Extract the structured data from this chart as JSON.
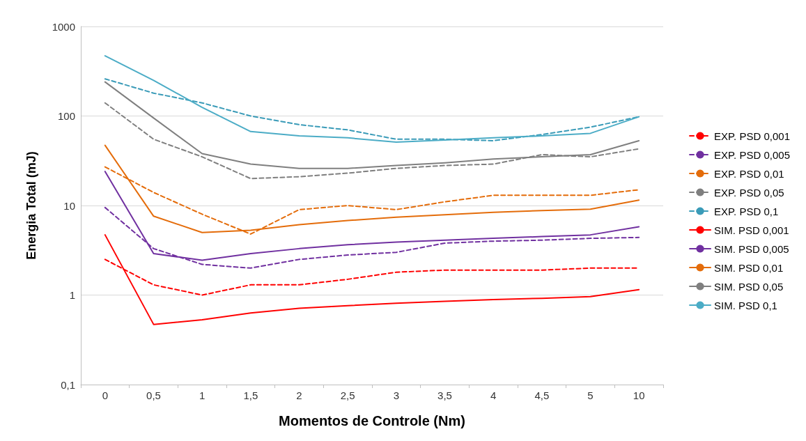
{
  "chart_data": {
    "type": "line",
    "xlabel": "Momentos de Controle (Nm)",
    "ylabel": "Energia Total (mJ)",
    "categories": [
      "0",
      "0,5",
      "1",
      "1,5",
      "2",
      "2,5",
      "3",
      "3,5",
      "4",
      "4,5",
      "5",
      "10"
    ],
    "log": "y",
    "ylim": [
      0.1,
      1000
    ],
    "yticks": [
      {
        "value": 0.1,
        "label": "0,1"
      },
      1,
      10,
      100,
      1000
    ],
    "grid": "y",
    "legend": "right",
    "marker": "none",
    "series": [
      {
        "name": "EXP. PSD 0,001",
        "color": "#ff0000",
        "line_style": "dashed",
        "values": [
          2.5,
          1.3,
          1.0,
          1.3,
          1.3,
          1.5,
          1.8,
          1.9,
          1.9,
          1.9,
          2.0,
          2.0
        ]
      },
      {
        "name": "EXP. PSD 0,005",
        "color": "#7030a0",
        "line_style": "dashed",
        "values": [
          9.5,
          3.3,
          2.2,
          2.0,
          2.5,
          2.8,
          3.0,
          3.8,
          4.0,
          4.1,
          4.3,
          4.4
        ]
      },
      {
        "name": "EXP. PSD 0,01",
        "color": "#e46c0a",
        "line_style": "dashed",
        "values": [
          27,
          14,
          8,
          4.8,
          9,
          10,
          9,
          11,
          13,
          13,
          13,
          15
        ]
      },
      {
        "name": "EXP. PSD 0,05",
        "color": "#7f7f7f",
        "line_style": "dashed",
        "values": [
          140,
          55,
          35,
          20,
          21,
          23,
          26,
          28,
          29,
          37,
          35,
          43
        ]
      },
      {
        "name": "EXP. PSD 0,1",
        "color": "#3a9bb8",
        "line_style": "dashed",
        "values": [
          260,
          180,
          140,
          100,
          80,
          70,
          55,
          55,
          53,
          62,
          75,
          98
        ]
      },
      {
        "name": "SIM. PSD 0,001",
        "color": "#ff0000",
        "line_style": "solid",
        "values": [
          4.7,
          0.47,
          0.53,
          0.63,
          0.71,
          0.76,
          0.81,
          0.85,
          0.89,
          0.92,
          0.96,
          1.15
        ]
      },
      {
        "name": "SIM. PSD 0,005",
        "color": "#7030a0",
        "line_style": "solid",
        "values": [
          24,
          2.9,
          2.45,
          2.9,
          3.3,
          3.65,
          3.9,
          4.1,
          4.3,
          4.5,
          4.7,
          5.8
        ]
      },
      {
        "name": "SIM. PSD 0,01",
        "color": "#e46c0a",
        "line_style": "solid",
        "values": [
          47,
          7.6,
          5.0,
          5.3,
          6.1,
          6.8,
          7.4,
          7.9,
          8.4,
          8.8,
          9.1,
          11.5
        ]
      },
      {
        "name": "SIM. PSD 0,05",
        "color": "#7f7f7f",
        "line_style": "solid",
        "values": [
          240,
          95,
          38,
          29,
          26,
          26,
          28,
          30,
          33,
          35,
          37,
          53
        ]
      },
      {
        "name": "SIM. PSD 0,1",
        "color": "#4bacc6",
        "line_style": "solid",
        "values": [
          470,
          250,
          125,
          67,
          60,
          57,
          51,
          54,
          57,
          60,
          64,
          98
        ]
      }
    ]
  }
}
